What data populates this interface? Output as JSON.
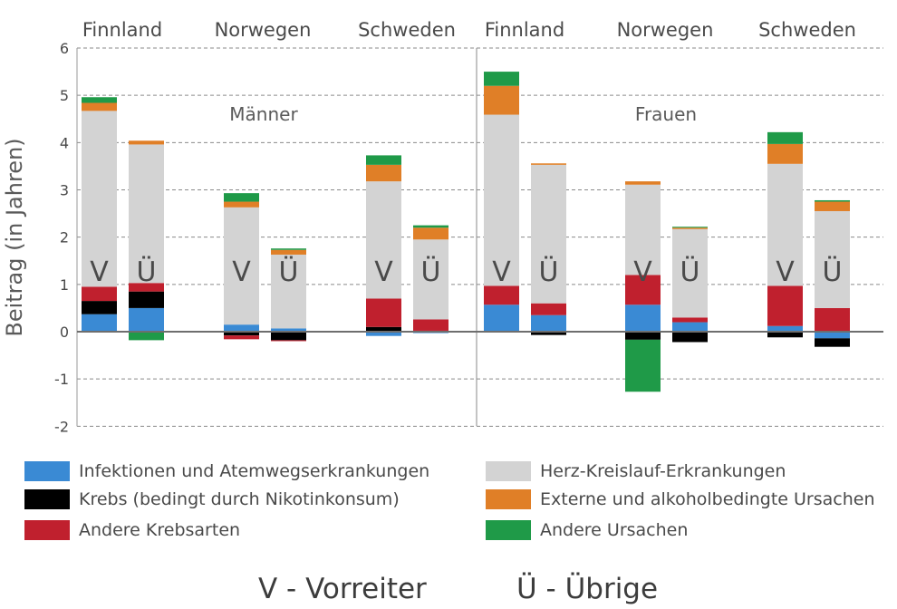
{
  "chart_data": {
    "type": "bar",
    "stacked": true,
    "ylabel": "Beitrag (in Jahren)",
    "ylim": [
      -2,
      6
    ],
    "yticks": [
      -2,
      -1,
      0,
      1,
      2,
      3,
      4,
      5,
      6
    ],
    "grid": true,
    "panels": [
      {
        "label": "Männer",
        "countries": [
          "Finnland",
          "Norwegen",
          "Schweden"
        ]
      },
      {
        "label": "Frauen",
        "countries": [
          "Finnland",
          "Norwegen",
          "Schweden"
        ]
      }
    ],
    "bar_letters": [
      "V",
      "Ü"
    ],
    "series": [
      {
        "name": "Infektionen und Atemwegserkrankungen",
        "color": "#3a8ad4"
      },
      {
        "name": "Krebs (bedingt durch Nikotinkonsum)",
        "color": "#000000"
      },
      {
        "name": "Andere Krebsarten",
        "color": "#c0202e"
      },
      {
        "name": "Herz-Kreislauf-Erkrankungen",
        "color": "#d3d3d3"
      },
      {
        "name": "Externe und alkoholbedingte Ursachen",
        "color": "#e07f27"
      },
      {
        "name": "Andere Ursachen",
        "color": "#1f9a48"
      }
    ],
    "bars": [
      {
        "panel": "Männer",
        "country": "Finnland",
        "group": "V",
        "values": [
          0.37,
          0.28,
          0.3,
          3.72,
          0.17,
          0.12
        ]
      },
      {
        "panel": "Männer",
        "country": "Finnland",
        "group": "Ü",
        "values": [
          0.5,
          0.35,
          0.18,
          2.93,
          0.08,
          -0.18
        ]
      },
      {
        "panel": "Männer",
        "country": "Norwegen",
        "group": "V",
        "values": [
          0.15,
          -0.08,
          -0.08,
          2.48,
          0.12,
          0.18
        ]
      },
      {
        "panel": "Männer",
        "country": "Norwegen",
        "group": "Ü",
        "values": [
          0.07,
          -0.18,
          -0.02,
          1.56,
          0.1,
          0.03
        ]
      },
      {
        "panel": "Männer",
        "country": "Schweden",
        "group": "V",
        "values": [
          -0.09,
          0.1,
          0.6,
          2.48,
          0.35,
          0.2
        ]
      },
      {
        "panel": "Männer",
        "country": "Schweden",
        "group": "Ü",
        "values": [
          -0.03,
          0.02,
          0.24,
          1.69,
          0.25,
          0.05
        ]
      },
      {
        "panel": "Frauen",
        "country": "Finnland",
        "group": "V",
        "values": [
          0.57,
          0.0,
          0.4,
          3.62,
          0.61,
          0.3
        ]
      },
      {
        "panel": "Frauen",
        "country": "Finnland",
        "group": "Ü",
        "values": [
          0.35,
          -0.07,
          0.25,
          2.93,
          0.03,
          0.0
        ]
      },
      {
        "panel": "Frauen",
        "country": "Norwegen",
        "group": "V",
        "values": [
          0.57,
          -0.17,
          0.63,
          1.91,
          0.07,
          -1.1
        ]
      },
      {
        "panel": "Frauen",
        "country": "Norwegen",
        "group": "Ü",
        "values": [
          0.2,
          -0.22,
          0.1,
          1.87,
          0.03,
          0.02
        ]
      },
      {
        "panel": "Frauen",
        "country": "Schweden",
        "group": "V",
        "values": [
          0.12,
          -0.12,
          0.85,
          2.58,
          0.42,
          0.25
        ]
      },
      {
        "panel": "Frauen",
        "country": "Schweden",
        "group": "Ü",
        "values": [
          -0.14,
          -0.18,
          0.5,
          2.05,
          0.2,
          0.03
        ]
      }
    ]
  },
  "legend": [
    {
      "label": "Infektionen und Atemwegserkrankungen",
      "color": "#3a8ad4"
    },
    {
      "label": "Herz-Kreislauf-Erkrankungen",
      "color": "#d3d3d3"
    },
    {
      "label": "Krebs (bedingt durch Nikotinkonsum)",
      "color": "#000000"
    },
    {
      "label": "Externe und alkoholbedingte Ursachen",
      "color": "#e07f27"
    },
    {
      "label": "Andere Krebsarten",
      "color": "#c0202e"
    },
    {
      "label": "Andere Ursachen",
      "color": "#1f9a48"
    }
  ],
  "footnote": {
    "v": "V - Vorreiter",
    "u": "Ü - Übrige"
  }
}
